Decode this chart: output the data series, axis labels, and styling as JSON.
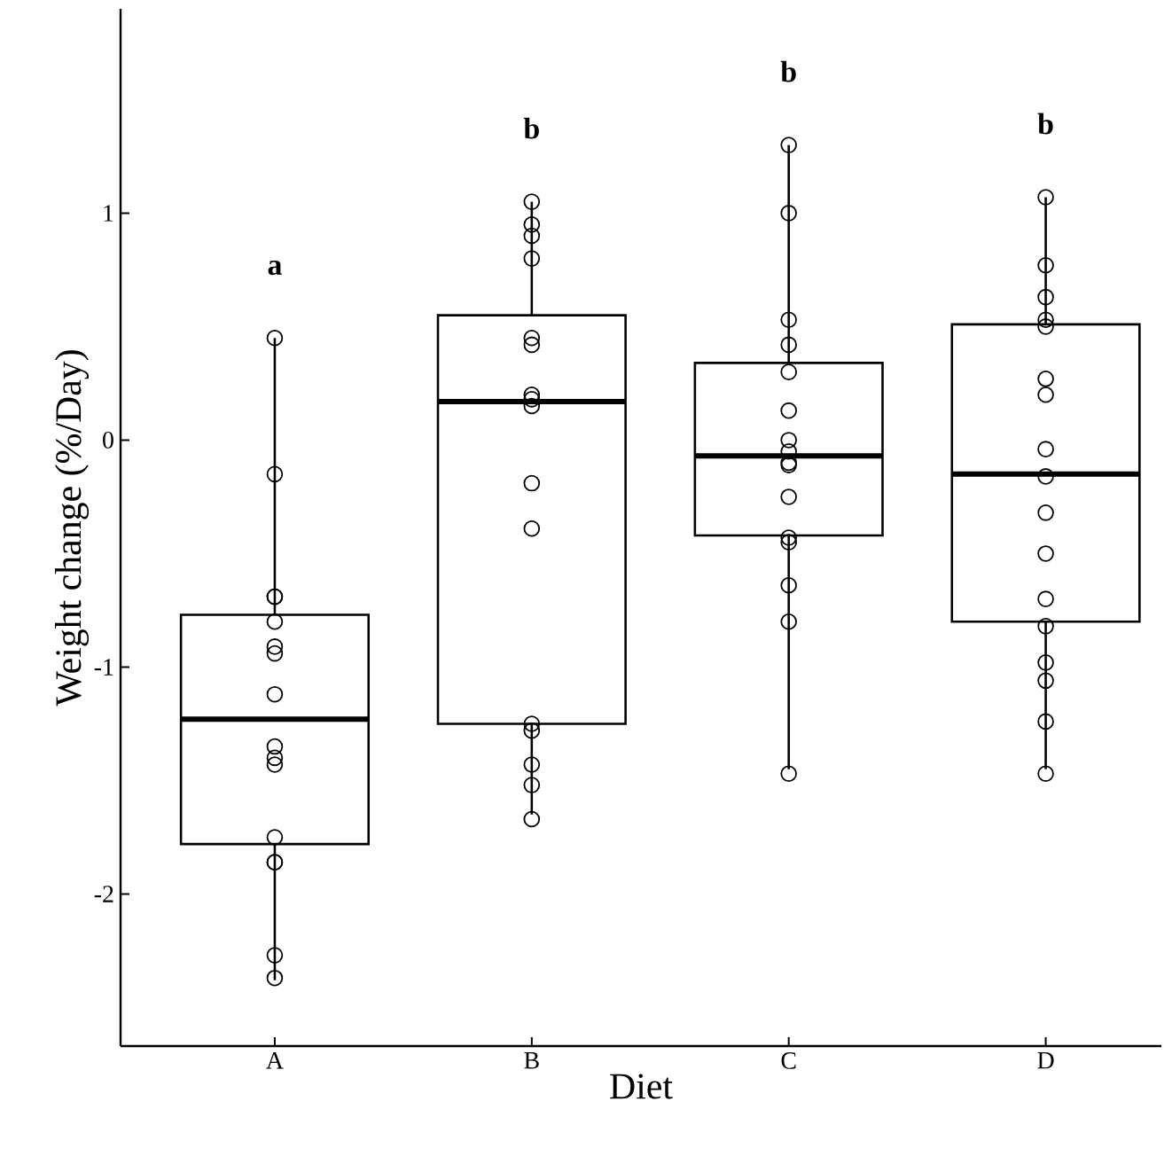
{
  "chart_data": {
    "type": "box",
    "xlabel": "Diet",
    "ylabel": "Weight change (%/Day)",
    "categories": [
      "A",
      "B",
      "C",
      "D"
    ],
    "boxes": [
      {
        "low": -2.38,
        "q1": -1.78,
        "median": -1.23,
        "q3": -0.77,
        "high": 0.45
      },
      {
        "low": -1.65,
        "q1": -1.25,
        "median": 0.17,
        "q3": 0.55,
        "high": 1.05
      },
      {
        "low": -1.45,
        "q1": -0.42,
        "median": -0.07,
        "q3": 0.34,
        "high": 1.3
      },
      {
        "low": -1.45,
        "q1": -0.8,
        "median": -0.15,
        "q3": 0.51,
        "high": 1.07
      }
    ],
    "series": [
      {
        "type": "scatter",
        "color": "#000000",
        "marker": "circle",
        "x": [
          "A",
          "A",
          "A",
          "A",
          "A",
          "A",
          "A",
          "A",
          "A",
          "A",
          "A",
          "A",
          "A",
          "A",
          "A",
          "A",
          "B",
          "B",
          "B",
          "B",
          "B",
          "B",
          "B",
          "B",
          "B",
          "B",
          "B",
          "B",
          "B",
          "B",
          "B",
          "B",
          "C",
          "C",
          "C",
          "C",
          "C",
          "C",
          "C",
          "C",
          "C",
          "C",
          "C",
          "C",
          "C",
          "C",
          "C",
          "C",
          "D",
          "D",
          "D",
          "D",
          "D",
          "D",
          "D",
          "D",
          "D",
          "D",
          "D",
          "D",
          "D",
          "D",
          "D",
          "D",
          "D"
        ],
        "values": [
          0.45,
          -0.15,
          -0.69,
          -0.69,
          -0.8,
          -0.91,
          -0.94,
          -1.12,
          -1.35,
          -1.4,
          -1.43,
          -1.75,
          -1.86,
          -1.86,
          -2.27,
          -2.37,
          1.05,
          0.95,
          0.9,
          0.8,
          0.45,
          0.42,
          0.2,
          0.18,
          0.15,
          -0.19,
          -0.39,
          -1.25,
          -1.28,
          -1.43,
          -1.52,
          -1.67,
          1.3,
          1.0,
          0.53,
          0.42,
          0.3,
          0.13,
          0.0,
          -0.05,
          -0.1,
          -0.11,
          -0.25,
          -0.43,
          -0.45,
          -0.64,
          -0.8,
          -1.47,
          1.07,
          0.77,
          0.63,
          0.53,
          0.5,
          0.27,
          0.2,
          -0.04,
          -0.16,
          -0.32,
          -0.5,
          -0.7,
          -0.82,
          -0.98,
          -1.06,
          -1.24,
          -1.47
        ]
      }
    ],
    "ylim": [
      -2.67,
      1.9
    ],
    "yticks": [
      -2,
      -1,
      0,
      1
    ],
    "grid": false,
    "annotations": [
      "a",
      "b",
      "b",
      "b"
    ]
  }
}
